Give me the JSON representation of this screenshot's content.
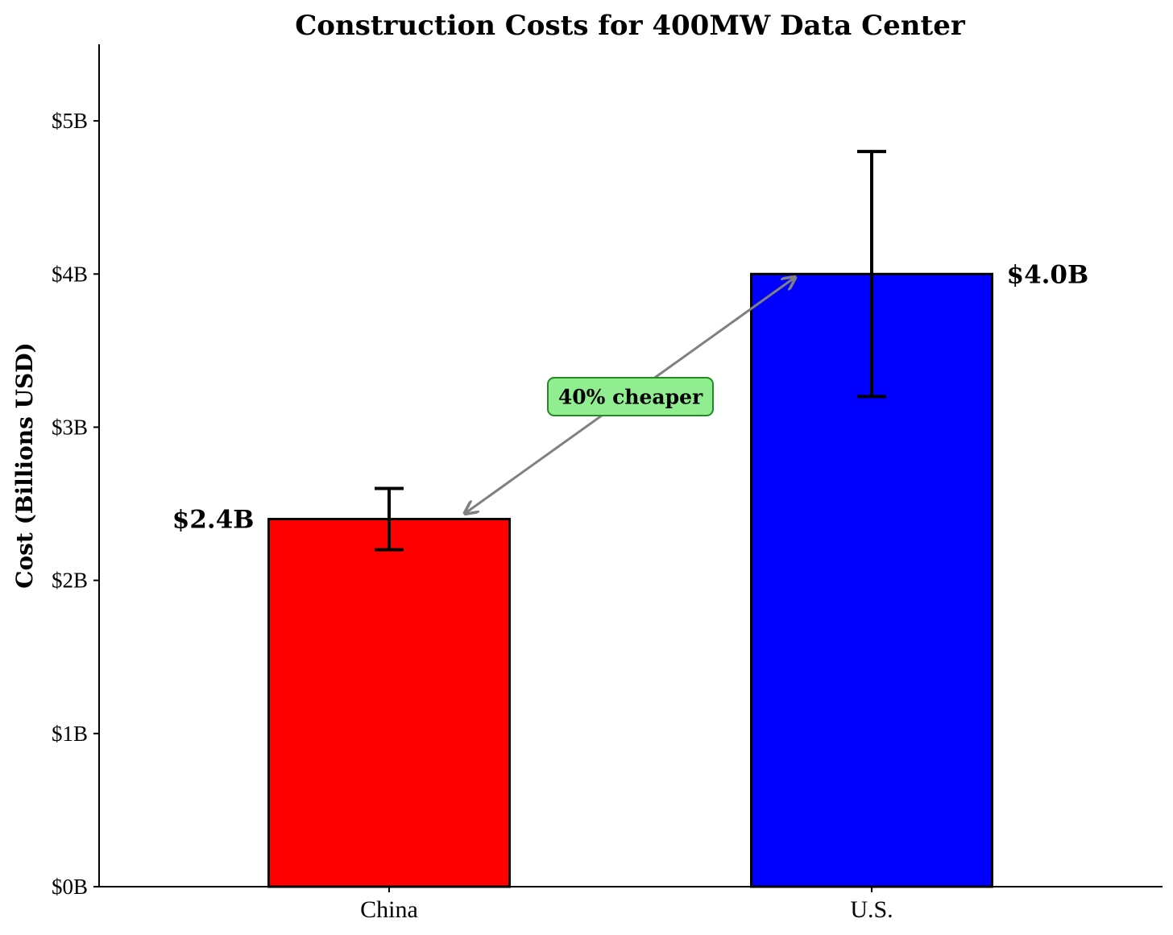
{
  "chart_data": {
    "type": "bar",
    "title": "Construction Costs for 400MW Data Center",
    "xlabel": "",
    "ylabel": "Cost (Billions USD)",
    "categories": [
      "China",
      "U.S."
    ],
    "values": [
      2.4,
      4.0
    ],
    "error_low": [
      2.2,
      3.2
    ],
    "error_high": [
      2.6,
      4.8
    ],
    "colors": [
      "#ff0000",
      "#0000ff"
    ],
    "value_labels": [
      "$2.4B",
      "$4.0B"
    ],
    "ylim": [
      0,
      5.5
    ],
    "yticks": [
      0,
      1,
      2,
      3,
      4,
      5
    ],
    "ytick_labels": [
      "$0B",
      "$1B",
      "$2B",
      "$3B",
      "$4B",
      "$5B"
    ],
    "grid": false,
    "annotation": {
      "text": "40% cheaper",
      "from_category": "U.S.",
      "to_category": "China",
      "box_color": "#90ee90",
      "box_edge_color": "#228b22",
      "arrow_color": "#808080"
    }
  }
}
